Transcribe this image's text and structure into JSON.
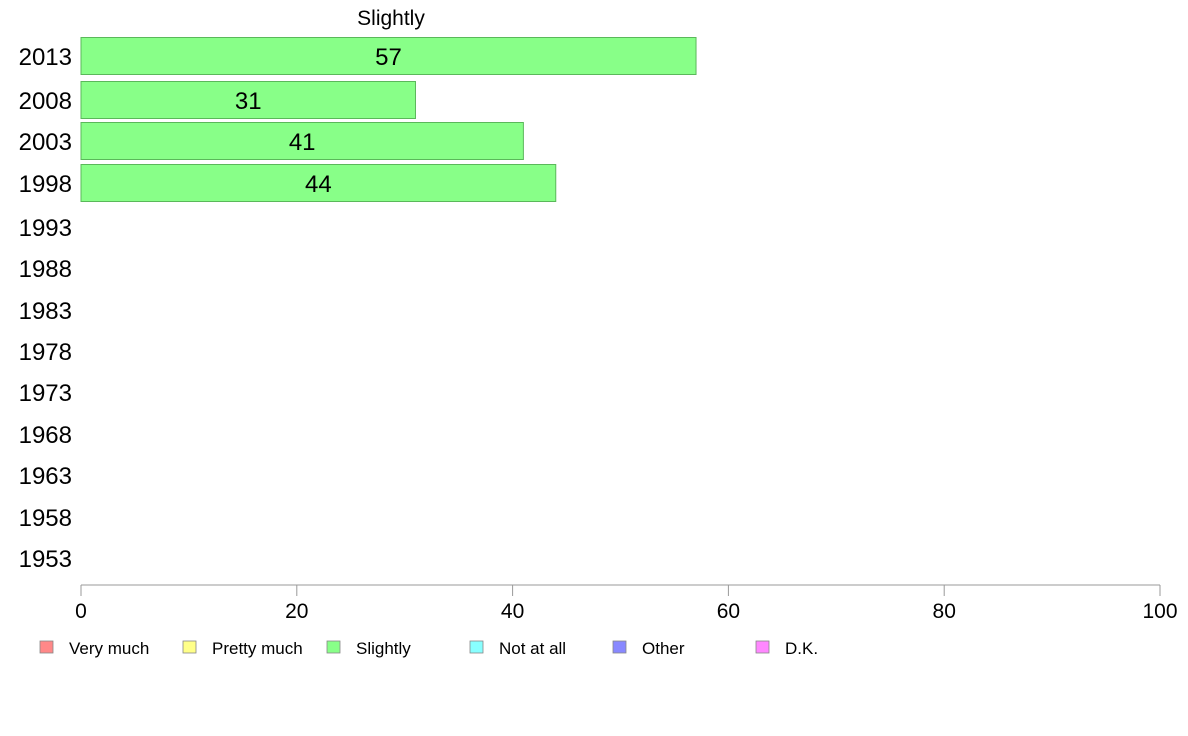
{
  "chart_data": {
    "type": "bar",
    "orientation": "horizontal",
    "title": "Slightly",
    "categories": [
      "2013",
      "2008",
      "2003",
      "1998",
      "1993",
      "1988",
      "1983",
      "1978",
      "1973",
      "1968",
      "1963",
      "1958",
      "1953"
    ],
    "values": [
      57,
      31,
      41,
      44,
      null,
      null,
      null,
      null,
      null,
      null,
      null,
      null,
      null
    ],
    "xlim": [
      0,
      100
    ],
    "xticks": [
      0,
      20,
      40,
      60,
      80,
      100
    ],
    "bar_color": "#88ff88",
    "bar_edge_color": "#5ab85a",
    "grid": false,
    "legend_position": "bottom",
    "legend": [
      {
        "label": "Very much",
        "color": "#ff8888"
      },
      {
        "label": "Pretty much",
        "color": "#ffff88"
      },
      {
        "label": "Slightly",
        "color": "#88ff88"
      },
      {
        "label": "Not at all",
        "color": "#88ffff"
      },
      {
        "label": "Other",
        "color": "#8888ff"
      },
      {
        "label": "D.K.",
        "color": "#ff88ff"
      }
    ]
  }
}
